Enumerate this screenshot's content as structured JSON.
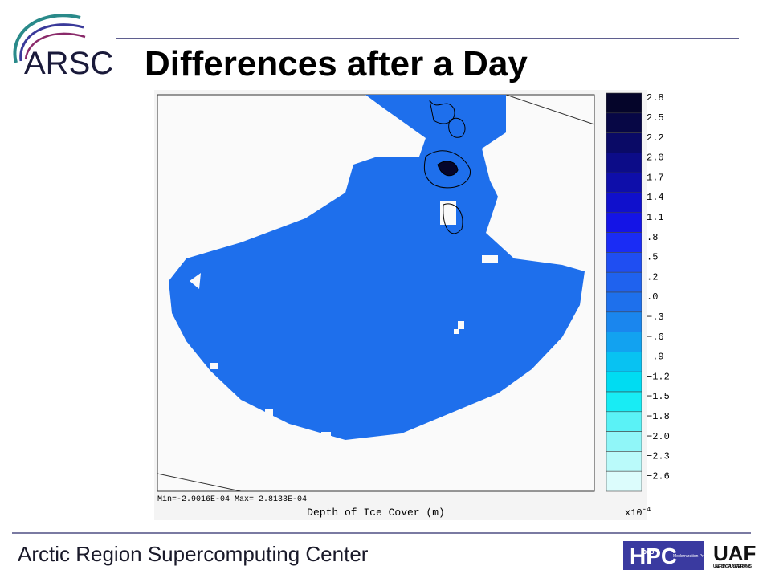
{
  "header": {
    "logo": "ARSC",
    "title": "Differences after a Day"
  },
  "map": {
    "stats": "Min=-2.9016E-04  Max= 2.8133E-04",
    "caption": "Depth of Ice Cover (m)",
    "colorbar": {
      "labels": [
        "2.8",
        "2.5",
        "2.2",
        "2.0",
        "1.7",
        "1.4",
        "1.1",
        ".8",
        ".5",
        ".2",
        ".0",
        "−.3",
        "−.6",
        "−.9",
        "−1.2",
        "−1.5",
        "−1.8",
        "−2.0",
        "−2.3",
        "−2.6"
      ],
      "colors": [
        "#05052a",
        "#070745",
        "#0a0a66",
        "#0c0c88",
        "#0e0eaa",
        "#1010cc",
        "#1414e6",
        "#1a2cf5",
        "#1f4ef2",
        "#1f62ee",
        "#1e70ec",
        "#1a86ee",
        "#12a2f0",
        "#08c2f2",
        "#00dcf2",
        "#18ecf4",
        "#5af2f6",
        "#90f6f8",
        "#bafafa",
        "#dcfcfc"
      ],
      "multiplier": "x10",
      "exponent": "-4"
    }
  },
  "footer": {
    "center": "Arctic Region Supercomputing Center",
    "hpc": "HPC",
    "dod": "DoD",
    "program": "Modernization Program",
    "uaf": "UAF",
    "uaf_sub": "UNIVERSITY OF ALASKA FAIRBANKS"
  }
}
